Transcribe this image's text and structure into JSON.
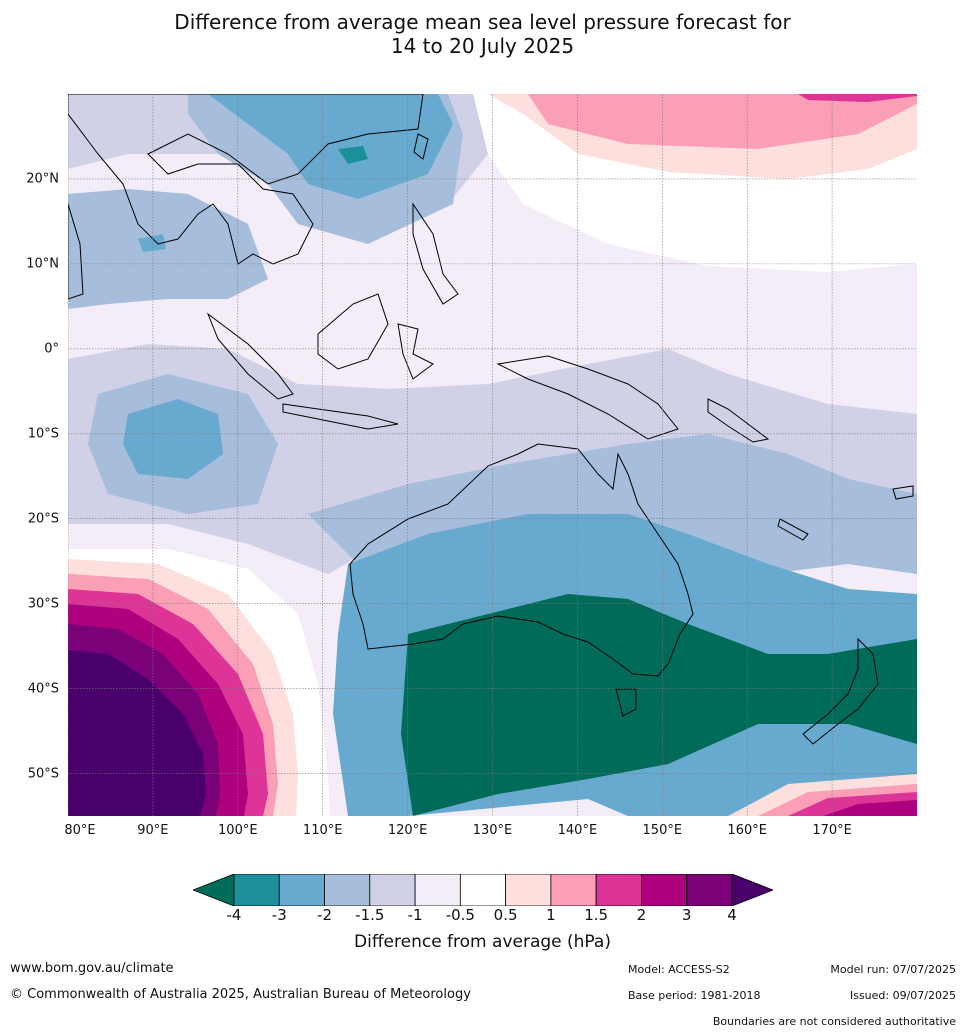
{
  "title": {
    "line1": "Difference from average mean sea level pressure forecast for",
    "line2": "14 to 20 July 2025"
  },
  "map": {
    "lon_range": [
      80,
      180
    ],
    "lat_range": [
      -55,
      30
    ],
    "lat_ticks": [
      "20°N",
      "10°N",
      "0°",
      "10°S",
      "20°S",
      "30°S",
      "40°S",
      "50°S"
    ],
    "lon_ticks": [
      "80°E",
      "90°E",
      "100°E",
      "110°E",
      "120°E",
      "130°E",
      "140°E",
      "150°E",
      "160°E",
      "170°E"
    ],
    "grid": true
  },
  "colorbar": {
    "ticks": [
      "-4",
      "-3",
      "-2",
      "-1.5",
      "-1",
      "-0.5",
      "0.5",
      "1",
      "1.5",
      "2",
      "3",
      "4"
    ],
    "colors": {
      "lt_minus4": "#006b58",
      "m4_m3": "#1c9099",
      "m3_m2": "#67a9cf",
      "m2_m15": "#a6bddb",
      "m15_m1": "#d0d1e6",
      "m1_m05": "#f4ecf6",
      "m05_05": "#ffffff",
      "p05_1": "#fde0dd",
      "p1_15": "#fa9fb5",
      "p15_2": "#dd3497",
      "p2_3": "#ae017e",
      "p3_4": "#7a0177",
      "gt_4": "#49006a"
    },
    "label": "Difference from average (hPa)"
  },
  "footer": {
    "website": "www.bom.gov.au/climate",
    "copyright": "© Commonwealth of Australia 2025, Australian Bureau of Meteorology",
    "model": "Model: ACCESS-S2",
    "base_period": "Base period: 1981-2018",
    "model_run": "Model run: 07/07/2025",
    "issued": "Issued: 09/07/2025",
    "disclaimer": "Boundaries are not considered authoritative"
  }
}
